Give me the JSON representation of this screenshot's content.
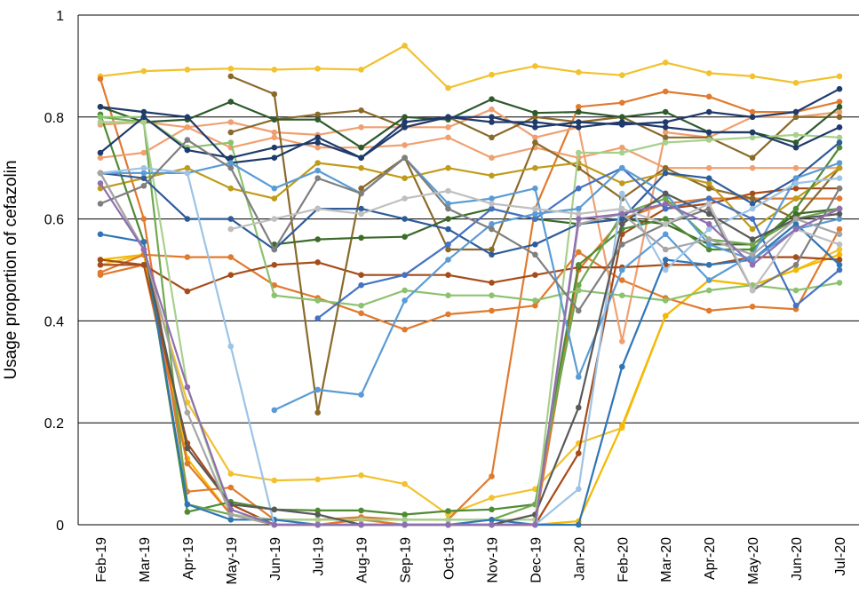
{
  "chart_data": {
    "type": "line",
    "title": "",
    "xlabel": "",
    "ylabel": "Usage proportion of cefazolin",
    "ylim": [
      0,
      1
    ],
    "yticks": [
      "0",
      "0.2",
      "0.4",
      "0.6",
      "0.8",
      "1"
    ],
    "grid": "horizontal",
    "legend": "none",
    "categories": [
      "Feb-19",
      "Mar-19",
      "Apr-19",
      "May-19",
      "Jun-19",
      "Jul-19",
      "Aug-19",
      "Sep-19",
      "Oct-19",
      "Nov-19",
      "Dec-19",
      "Jan-20",
      "Feb-20",
      "Mar-20",
      "Apr-20",
      "May-20",
      "Jun-20",
      "Jul-20"
    ],
    "series": [
      {
        "color": "#F2C12E",
        "values": [
          0.88,
          0.89,
          0.893,
          0.895,
          0.893,
          0.895,
          0.893,
          0.94,
          0.857,
          0.883,
          0.9,
          0.888,
          0.882,
          0.907,
          0.886,
          0.88,
          0.867,
          0.88
        ]
      },
      {
        "color": "#F2C12E",
        "values": [
          0.51,
          0.53,
          0.24,
          0.1,
          0.087,
          0.089,
          0.097,
          0.08,
          0.02,
          0.053,
          0.07,
          0.16,
          0.19,
          0.41,
          0.48,
          0.47,
          0.5,
          0.54
        ]
      },
      {
        "color": "#F5B800",
        "values": [
          0.52,
          0.53,
          0.13,
          0.02,
          0.0,
          0.0,
          0.0,
          0.0,
          0.0,
          0.0,
          0.0,
          0.007,
          0.195,
          0.41,
          0.48,
          0.47,
          0.5,
          0.53
        ]
      },
      {
        "color": "#E07A2E",
        "values": [
          0.875,
          0.6,
          0.065,
          0.073,
          0.01,
          0.01,
          0.015,
          0.01,
          0.01,
          0.095,
          0.62,
          0.82,
          0.828,
          0.85,
          0.84,
          0.81,
          0.81,
          0.83
        ]
      },
      {
        "color": "#E07A2E",
        "values": [
          0.495,
          0.53,
          0.525,
          0.525,
          0.47,
          0.445,
          0.415,
          0.383,
          0.413,
          0.42,
          0.43,
          0.535,
          0.48,
          0.445,
          0.42,
          0.428,
          0.423,
          0.58
        ]
      },
      {
        "color": "#E07A2E",
        "values": [
          0.49,
          0.51,
          0.12,
          0.02,
          0.0,
          0.0,
          0.01,
          0.0,
          0.0,
          0.0,
          0.0,
          0.5,
          0.6,
          0.63,
          0.64,
          0.64,
          0.64,
          0.64
        ]
      },
      {
        "color": "#F0A070",
        "values": [
          0.785,
          0.79,
          0.78,
          0.79,
          0.77,
          0.765,
          0.78,
          0.78,
          0.78,
          0.815,
          0.76,
          0.78,
          0.36,
          0.77,
          0.76,
          0.8,
          0.8,
          0.81
        ]
      },
      {
        "color": "#F0A070",
        "values": [
          0.72,
          0.73,
          0.78,
          0.74,
          0.76,
          0.74,
          0.74,
          0.745,
          0.76,
          0.72,
          0.74,
          0.72,
          0.74,
          0.7,
          0.7,
          0.7,
          0.7,
          0.7
        ]
      },
      {
        "color": "#A64B1A",
        "values": [
          0.52,
          0.51,
          0.458,
          0.49,
          0.51,
          0.515,
          0.49,
          0.49,
          0.49,
          0.475,
          0.49,
          0.505,
          0.505,
          0.51,
          0.51,
          0.525,
          0.525,
          0.52
        ]
      },
      {
        "color": "#A64B1A",
        "values": [
          0.51,
          0.51,
          0.16,
          0.04,
          0.0,
          0.0,
          0.0,
          0.0,
          0.0,
          0.0,
          0.0,
          0.14,
          0.57,
          0.62,
          0.63,
          0.65,
          0.66,
          0.66
        ]
      },
      {
        "color": "#8A6A2A",
        "values": [
          null,
          null,
          null,
          0.88,
          0.845,
          0.22,
          0.66,
          0.72,
          0.54,
          0.54,
          0.75,
          0.7,
          0.64,
          0.7,
          0.66,
          0.64,
          0.6,
          0.7
        ]
      },
      {
        "color": "#8A6A2A",
        "values": [
          null,
          null,
          null,
          0.77,
          0.795,
          0.805,
          0.813,
          0.78,
          0.8,
          0.76,
          0.8,
          0.79,
          0.8,
          0.76,
          0.76,
          0.72,
          0.8,
          0.8
        ]
      },
      {
        "color": "#BF9B1A",
        "values": [
          0.66,
          0.68,
          0.7,
          0.66,
          0.64,
          0.71,
          0.7,
          0.68,
          0.7,
          0.685,
          0.7,
          0.71,
          0.67,
          0.69,
          0.67,
          0.58,
          0.64,
          0.7
        ]
      },
      {
        "color": "#2E5A2E",
        "values": [
          0.82,
          0.79,
          0.795,
          0.83,
          0.795,
          0.795,
          0.74,
          0.8,
          0.795,
          0.835,
          0.808,
          0.81,
          0.8,
          0.81,
          0.77,
          0.77,
          0.75,
          0.82
        ]
      },
      {
        "color": "#3C6B2A",
        "values": [
          null,
          null,
          null,
          null,
          0.55,
          0.56,
          0.563,
          0.565,
          0.6,
          0.62,
          0.6,
          0.59,
          0.6,
          0.59,
          0.55,
          0.55,
          0.61,
          0.62
        ]
      },
      {
        "color": "#4F8A34",
        "values": [
          0.805,
          0.555,
          0.025,
          0.045,
          0.03,
          0.028,
          0.028,
          0.02,
          0.027,
          0.03,
          0.04,
          0.51,
          0.58,
          0.6,
          0.54,
          0.54,
          0.62,
          0.74
        ]
      },
      {
        "color": "#6FA84F",
        "values": [
          0.8,
          0.79,
          0.04,
          0.02,
          0.01,
          0.01,
          0.01,
          0.01,
          0.01,
          0.01,
          0.04,
          0.47,
          0.61,
          0.64,
          0.56,
          0.55,
          0.6,
          0.62
        ]
      },
      {
        "color": "#8CC26E",
        "values": [
          0.8,
          0.8,
          0.74,
          0.75,
          0.45,
          0.44,
          0.43,
          0.46,
          0.45,
          0.45,
          0.44,
          0.46,
          0.45,
          0.44,
          0.46,
          0.47,
          0.46,
          0.475
        ]
      },
      {
        "color": "#A8D08D",
        "values": [
          0.79,
          0.79,
          0.27,
          0.02,
          0.01,
          0.01,
          0.01,
          0.01,
          0.01,
          0.01,
          0.01,
          0.73,
          0.73,
          0.75,
          0.755,
          0.76,
          0.765,
          0.76
        ]
      },
      {
        "color": "#1F3A6B",
        "values": [
          0.73,
          0.8,
          0.735,
          0.72,
          0.74,
          0.75,
          0.72,
          0.79,
          0.8,
          0.79,
          0.79,
          0.78,
          0.79,
          0.78,
          0.77,
          0.77,
          0.74,
          0.78
        ]
      },
      {
        "color": "#1F3A6B",
        "values": [
          0.82,
          0.81,
          0.8,
          0.71,
          0.72,
          0.76,
          0.72,
          0.78,
          0.8,
          0.8,
          0.78,
          0.79,
          0.785,
          0.79,
          0.81,
          0.8,
          0.81,
          0.855
        ]
      },
      {
        "color": "#2E5C9A",
        "values": [
          0.69,
          0.68,
          0.6,
          0.6,
          0.54,
          0.62,
          0.62,
          0.6,
          0.58,
          0.53,
          0.55,
          0.59,
          0.6,
          0.69,
          0.68,
          0.63,
          0.68,
          0.75
        ]
      },
      {
        "color": "#2E75B6",
        "values": [
          0.57,
          0.555,
          0.04,
          0.01,
          0.01,
          0.0,
          0.0,
          0.0,
          0.0,
          0.01,
          0.0,
          0.0,
          0.31,
          0.52,
          0.51,
          0.52,
          0.59,
          0.51
        ]
      },
      {
        "color": "#4472C4",
        "values": [
          null,
          null,
          null,
          null,
          null,
          0.405,
          0.47,
          0.49,
          0.55,
          0.62,
          0.6,
          0.66,
          0.7,
          0.62,
          0.64,
          0.6,
          0.43,
          0.5
        ]
      },
      {
        "color": "#5B9BD5",
        "values": [
          null,
          null,
          null,
          null,
          0.225,
          0.265,
          0.255,
          0.44,
          0.52,
          0.59,
          0.61,
          0.62,
          0.7,
          0.65,
          0.55,
          0.52,
          0.58,
          0.6
        ]
      },
      {
        "color": "#5B9BD5",
        "values": [
          0.69,
          0.69,
          0.69,
          0.71,
          0.66,
          0.695,
          0.65,
          0.72,
          0.63,
          0.64,
          0.66,
          0.29,
          0.5,
          0.57,
          0.48,
          0.53,
          0.68,
          0.71
        ]
      },
      {
        "color": "#9DC3E6",
        "values": [
          0.69,
          0.7,
          0.69,
          0.35,
          0.0,
          0.0,
          0.0,
          0.0,
          0.0,
          0.0,
          0.0,
          0.07,
          0.65,
          0.5,
          0.58,
          0.62,
          0.67,
          0.68
        ]
      },
      {
        "color": "#7F7F7F",
        "values": [
          0.63,
          0.665,
          0.755,
          0.7,
          0.54,
          0.68,
          0.65,
          0.72,
          0.62,
          0.58,
          0.53,
          0.42,
          0.55,
          0.59,
          0.62,
          0.46,
          0.51,
          0.66
        ]
      },
      {
        "color": "#595959",
        "values": [
          0.69,
          0.54,
          0.15,
          0.04,
          0.03,
          0.02,
          0.0,
          0.0,
          0.0,
          0.0,
          0.02,
          0.23,
          0.59,
          0.65,
          0.61,
          0.56,
          0.6,
          0.61
        ]
      },
      {
        "color": "#A6A6A6",
        "values": [
          0.69,
          0.54,
          0.22,
          0.02,
          0.0,
          0.0,
          0.0,
          0.0,
          0.0,
          0.0,
          0.0,
          0.59,
          0.61,
          0.54,
          0.56,
          0.53,
          0.6,
          0.57
        ]
      },
      {
        "color": "#BFBFBF",
        "values": [
          null,
          null,
          null,
          0.58,
          0.6,
          0.62,
          0.61,
          0.64,
          0.655,
          0.63,
          0.62,
          0.61,
          0.62,
          0.59,
          0.63,
          0.46,
          0.58,
          0.55
        ]
      },
      {
        "color": "#8E6FB0",
        "values": [
          0.67,
          0.54,
          0.27,
          0.03,
          0.0,
          0.0,
          0.0,
          0.0,
          0.0,
          0.0,
          0.0,
          0.6,
          0.61,
          0.63,
          0.59,
          0.51,
          0.58,
          0.62
        ]
      }
    ]
  }
}
